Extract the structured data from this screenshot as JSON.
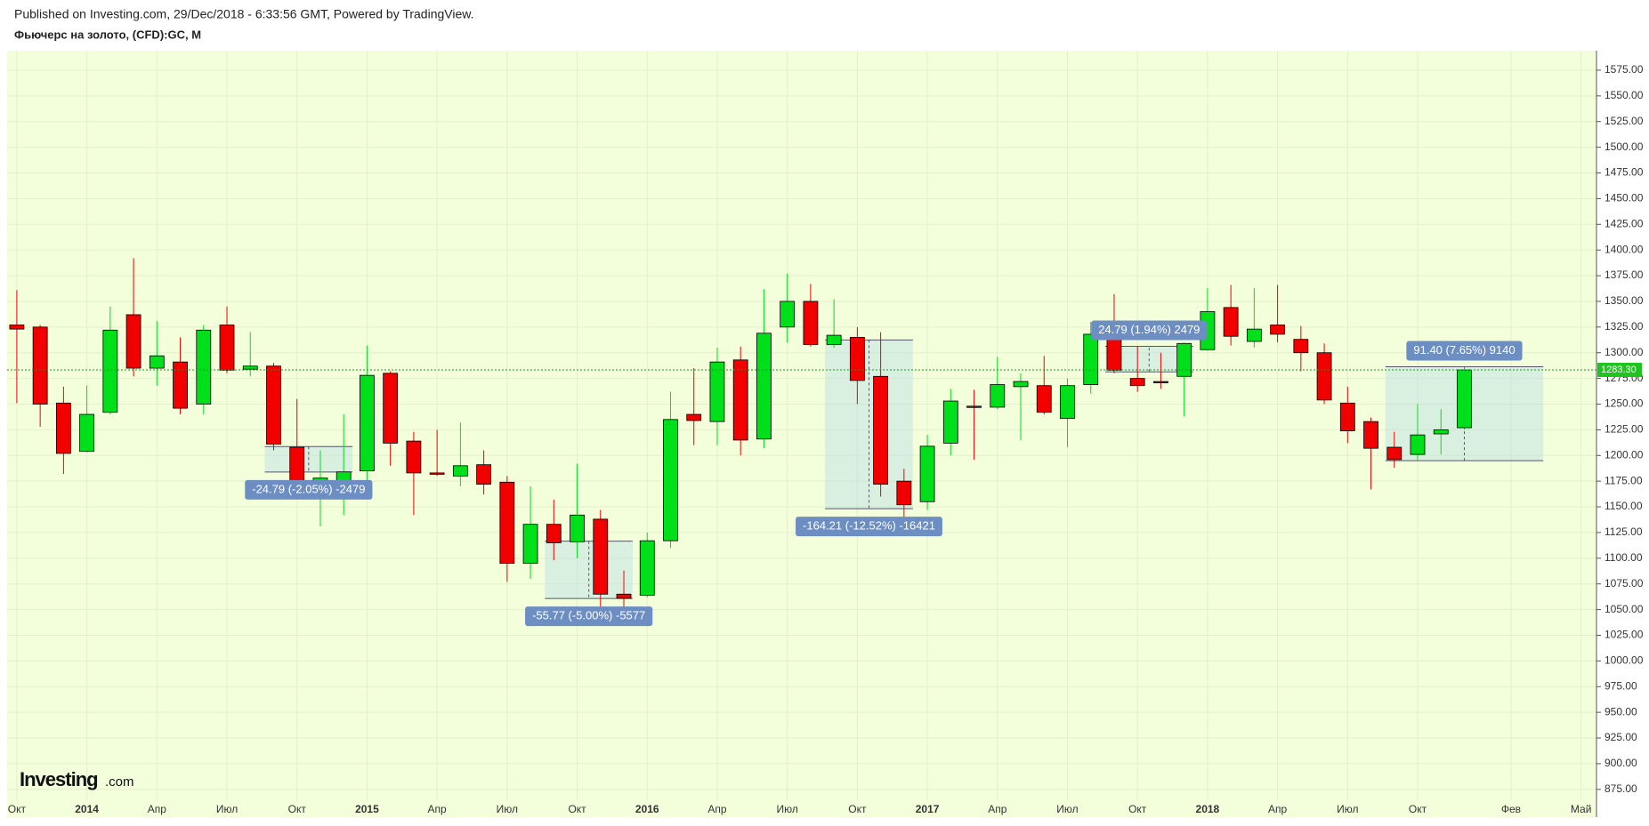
{
  "header": {
    "published": "Published on Investing.com, 29/Dec/2018 - 6:33:56 GMT, Powered by TradingView.",
    "title": "Фьючерс на золото, (CFD):GC, M"
  },
  "logo": {
    "name": "Investing",
    "suffix": ".com"
  },
  "chart_data": {
    "type": "candlestick",
    "x": [
      "2013-10",
      "2013-11",
      "2013-12",
      "2014-01",
      "2014-02",
      "2014-03",
      "2014-04",
      "2014-05",
      "2014-06",
      "2014-07",
      "2014-08",
      "2014-09",
      "2014-10",
      "2014-11",
      "2014-12",
      "2015-01",
      "2015-02",
      "2015-03",
      "2015-04",
      "2015-05",
      "2015-06",
      "2015-07",
      "2015-08",
      "2015-09",
      "2015-10",
      "2015-11",
      "2015-12",
      "2016-01",
      "2016-02",
      "2016-03",
      "2016-04",
      "2016-05",
      "2016-06",
      "2016-07",
      "2016-08",
      "2016-09",
      "2016-10",
      "2016-11",
      "2016-12",
      "2017-01",
      "2017-02",
      "2017-03",
      "2017-04",
      "2017-05",
      "2017-06",
      "2017-07",
      "2017-08",
      "2017-09",
      "2017-10",
      "2017-11",
      "2017-12",
      "2018-01",
      "2018-02",
      "2018-03",
      "2018-04",
      "2018-05",
      "2018-06",
      "2018-07",
      "2018-08",
      "2018-09",
      "2018-10",
      "2018-11",
      "2018-12"
    ],
    "open": [
      1327,
      1325,
      1251,
      1204,
      1242,
      1337,
      1285,
      1291,
      1250,
      1327,
      1284,
      1287,
      1208,
      1170,
      1162,
      1185,
      1280,
      1214,
      1183,
      1180,
      1191,
      1174,
      1095,
      1133,
      1116,
      1138,
      1065,
      1064,
      1117,
      1240,
      1233,
      1293,
      1216,
      1325,
      1350,
      1308,
      1315,
      1277,
      1175,
      1155,
      1212,
      1248,
      1247,
      1267,
      1268,
      1236,
      1269,
      1320,
      1275,
      1272,
      1277,
      1303,
      1344,
      1311,
      1327,
      1313,
      1300,
      1251,
      1233,
      1208,
      1201,
      1221,
      1227
    ],
    "high": [
      1361,
      1327,
      1267,
      1268,
      1345,
      1392,
      1331,
      1315,
      1327,
      1345,
      1320,
      1290,
      1255,
      1205,
      1240,
      1307,
      1282,
      1223,
      1225,
      1232,
      1205,
      1180,
      1170,
      1157,
      1192,
      1147,
      1088,
      1125,
      1262,
      1285,
      1305,
      1306,
      1362,
      1377,
      1367,
      1352,
      1325,
      1320,
      1187,
      1220,
      1265,
      1264,
      1296,
      1280,
      1297,
      1275,
      1330,
      1357,
      1306,
      1300,
      1310,
      1363,
      1366,
      1363,
      1366,
      1326,
      1309,
      1267,
      1237,
      1223,
      1250,
      1245,
      1285
    ],
    "low": [
      1251,
      1228,
      1182,
      1203,
      1240,
      1277,
      1268,
      1240,
      1240,
      1280,
      1277,
      1205,
      1160,
      1131,
      1142,
      1167,
      1190,
      1142,
      1180,
      1170,
      1162,
      1077,
      1080,
      1098,
      1100,
      1052,
      1045,
      1062,
      1110,
      1210,
      1210,
      1200,
      1207,
      1310,
      1306,
      1305,
      1250,
      1160,
      1122,
      1147,
      1200,
      1196,
      1245,
      1215,
      1240,
      1208,
      1260,
      1280,
      1262,
      1265,
      1238,
      1302,
      1307,
      1305,
      1310,
      1282,
      1250,
      1212,
      1167,
      1188,
      1195,
      1201,
      1225
    ],
    "close": [
      1323,
      1250,
      1202,
      1240,
      1322,
      1285,
      1297,
      1246,
      1322,
      1283,
      1287,
      1211,
      1172,
      1178,
      1184,
      1278,
      1212,
      1183,
      1182,
      1190,
      1172,
      1095,
      1133,
      1115,
      1142,
      1065,
      1061,
      1117,
      1235,
      1234,
      1291,
      1215,
      1319,
      1350,
      1308,
      1317,
      1273,
      1172,
      1152,
      1209,
      1253,
      1247,
      1269,
      1272,
      1242,
      1268,
      1318,
      1283,
      1268,
      1271,
      1309,
      1340,
      1316,
      1323,
      1318,
      1300,
      1254,
      1224,
      1207,
      1196,
      1220,
      1225,
      1283.3
    ],
    "up_color": "#00e01a",
    "down_color": "#f20000",
    "ylim": [
      848,
      1594
    ],
    "yticks": [
      {
        "value": 875,
        "label": "875.00"
      },
      {
        "value": 900,
        "label": "900.00"
      },
      {
        "value": 925,
        "label": "925.00"
      },
      {
        "value": 950,
        "label": "950.00"
      },
      {
        "value": 975,
        "label": "975.00"
      },
      {
        "value": 1000,
        "label": "1000.00"
      },
      {
        "value": 1025,
        "label": "1025.00"
      },
      {
        "value": 1050,
        "label": "1050.00"
      },
      {
        "value": 1075,
        "label": "1075.00"
      },
      {
        "value": 1100,
        "label": "1100.00"
      },
      {
        "value": 1125,
        "label": "1125.00"
      },
      {
        "value": 1150,
        "label": "1150.00"
      },
      {
        "value": 1175,
        "label": "1175.00"
      },
      {
        "value": 1200,
        "label": "1200.00"
      },
      {
        "value": 1225,
        "label": "1225.00"
      },
      {
        "value": 1250,
        "label": "1250.00"
      },
      {
        "value": 1275,
        "label": "1275.00"
      },
      {
        "value": 1300,
        "label": "1300.00"
      },
      {
        "value": 1325,
        "label": "1325.00"
      },
      {
        "value": 1350,
        "label": "1350.00"
      },
      {
        "value": 1375,
        "label": "1375.00"
      },
      {
        "value": 1400,
        "label": "1400.00"
      },
      {
        "value": 1425,
        "label": "1425.00"
      },
      {
        "value": 1450,
        "label": "1450.00"
      },
      {
        "value": 1475,
        "label": "1475.00"
      },
      {
        "value": 1500,
        "label": "1500.00"
      },
      {
        "value": 1525,
        "label": "1525.00"
      },
      {
        "value": 1550,
        "label": "1550.00"
      },
      {
        "value": 1575,
        "label": "1575.00"
      }
    ],
    "xticks": [
      {
        "value": "2013-10",
        "label": "Окт"
      },
      {
        "value": "2014-01",
        "label": "2014"
      },
      {
        "value": "2014-04",
        "label": "Апр"
      },
      {
        "value": "2014-07",
        "label": "Июл"
      },
      {
        "value": "2014-10",
        "label": "Окт"
      },
      {
        "value": "2015-01",
        "label": "2015"
      },
      {
        "value": "2015-04",
        "label": "Апр"
      },
      {
        "value": "2015-07",
        "label": "Июл"
      },
      {
        "value": "2015-10",
        "label": "Окт"
      },
      {
        "value": "2016-01",
        "label": "2016"
      },
      {
        "value": "2016-04",
        "label": "Апр"
      },
      {
        "value": "2016-07",
        "label": "Июл"
      },
      {
        "value": "2016-10",
        "label": "Окт"
      },
      {
        "value": "2017-01",
        "label": "2017"
      },
      {
        "value": "2017-04",
        "label": "Апр"
      },
      {
        "value": "2017-07",
        "label": "Июл"
      },
      {
        "value": "2017-10",
        "label": "Окт"
      },
      {
        "value": "2018-01",
        "label": "2018"
      },
      {
        "value": "2018-04",
        "label": "Апр"
      },
      {
        "value": "2018-07",
        "label": "Июл"
      },
      {
        "value": "2018-10",
        "label": "Окт"
      },
      {
        "value": "2019-02",
        "label": "Фев"
      },
      {
        "value": "2019-05",
        "label": "Май"
      }
    ],
    "grid": true,
    "last_price": {
      "value": 1283.3,
      "label": "1283.30"
    },
    "annotations": [
      {
        "label": "-24.79 (-2.05%) -2479",
        "start": "2014-09",
        "end": "2014-12",
        "from": 1208.7,
        "to": 1183.9
      },
      {
        "label": "-55.77 (-5.00%) -5577",
        "start": "2015-09",
        "end": "2015-12",
        "from": 1116.6,
        "to": 1060.8
      },
      {
        "label": "-164.21 (-12.52%) -16421",
        "start": "2016-09",
        "end": "2016-12",
        "from": 1312.4,
        "to": 1148.2
      },
      {
        "label": "24.79 (1.94%) 2479",
        "start": "2017-09",
        "end": "2017-12",
        "from": 1281.4,
        "to": 1306.2
      },
      {
        "label": "91.40 (7.65%) 9140",
        "start": "2018-09",
        "end": "2019-03",
        "from": 1194.9,
        "to": 1286.3
      }
    ]
  }
}
